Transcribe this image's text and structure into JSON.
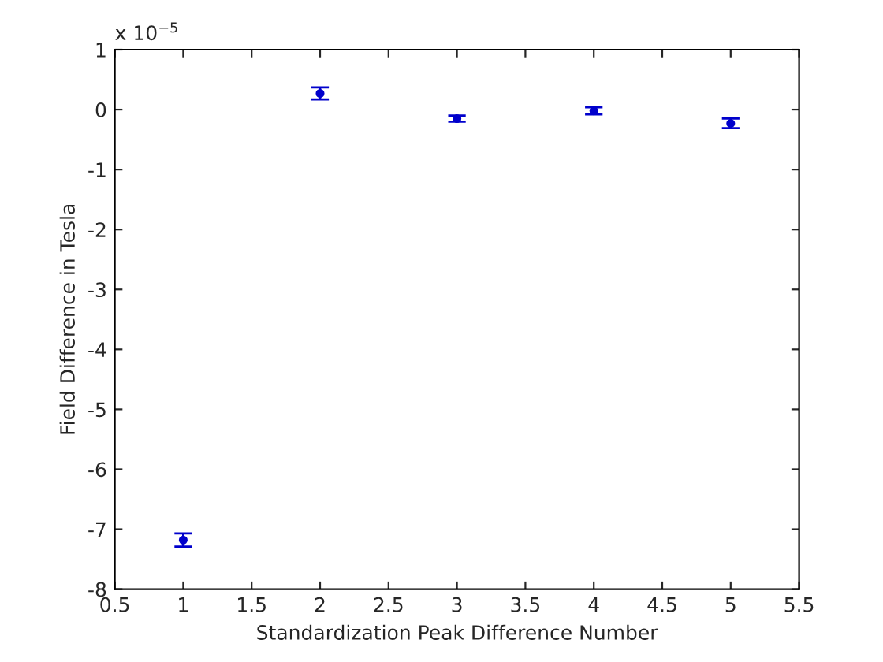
{
  "chart_data": {
    "type": "scatter",
    "xlabel": "Standardization Peak Difference Number",
    "ylabel": "Field Difference in Tesla",
    "annotations": [
      "x 10$^{−5}$"
    ],
    "x": [
      1,
      2,
      3,
      4,
      5
    ],
    "series": [
      {
        "color": "#0000cc",
        "values": [
          -7.18,
          0.27,
          -0.15,
          -0.02,
          -0.23
        ],
        "errors": [
          0.11,
          0.1,
          0.05,
          0.06,
          0.08
        ]
      }
    ],
    "xlim": [
      0.5,
      5.5
    ],
    "xticks": [
      0.5,
      1,
      1.5,
      2,
      2.5,
      3,
      3.5,
      4,
      4.5,
      5,
      5.5
    ],
    "ylim": [
      -8,
      1
    ],
    "yticks": [
      -8,
      -7,
      -6,
      -5,
      -4,
      -3,
      -2,
      -1,
      0,
      1
    ],
    "marker": "circle",
    "grid": false
  }
}
